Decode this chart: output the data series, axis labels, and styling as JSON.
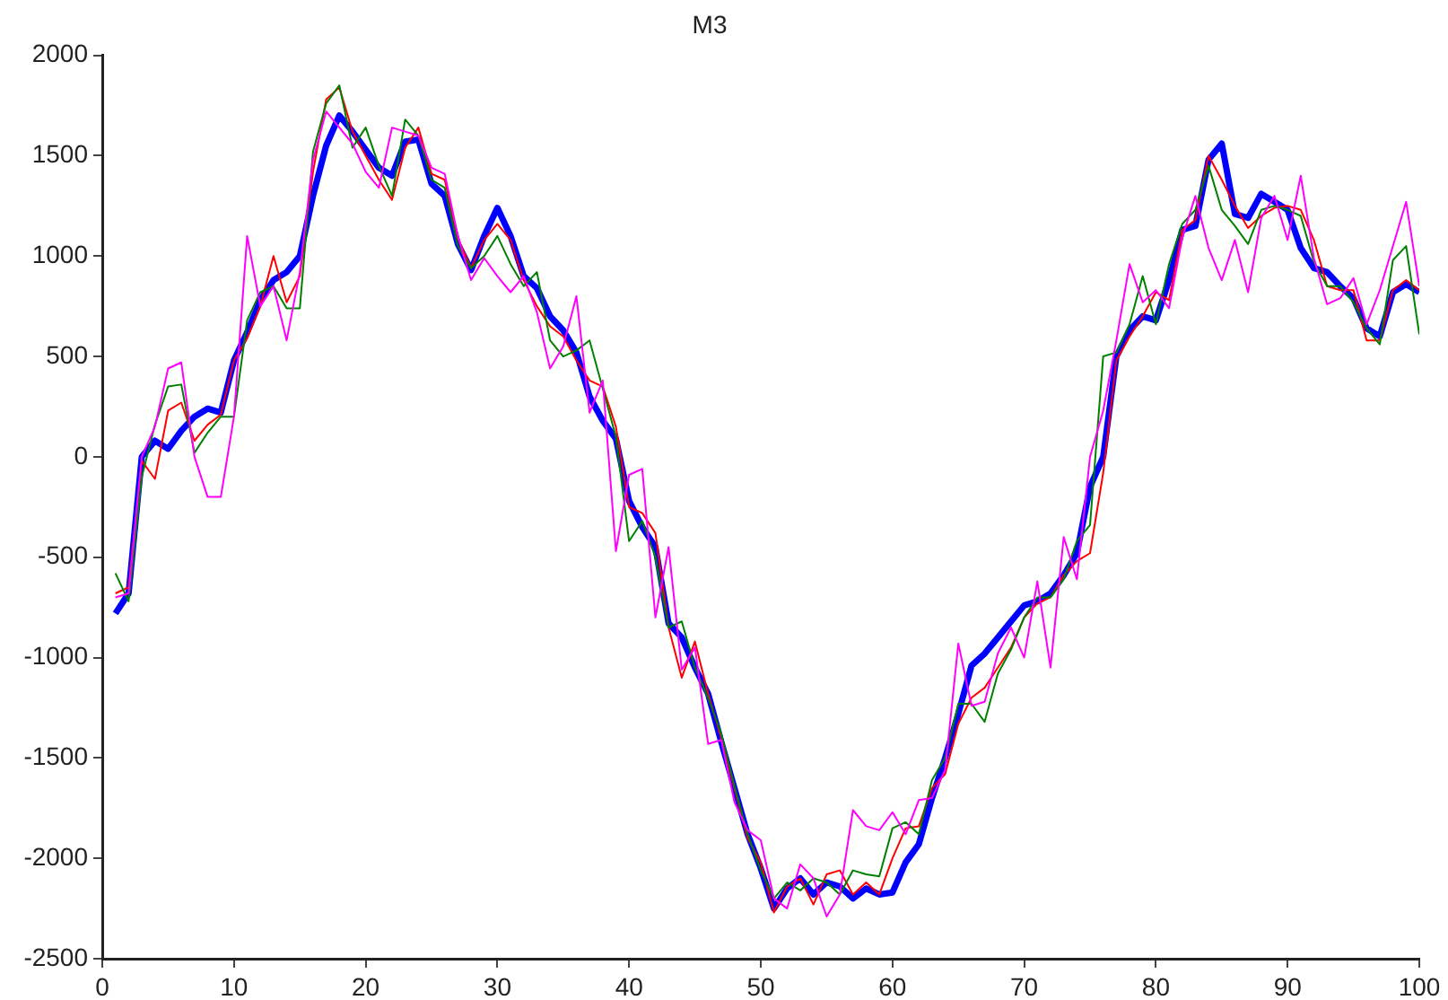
{
  "chart_data": {
    "type": "line",
    "title": "M3",
    "x": [
      1,
      2,
      3,
      4,
      5,
      6,
      7,
      8,
      9,
      10,
      11,
      12,
      13,
      14,
      15,
      16,
      17,
      18,
      19,
      20,
      21,
      22,
      23,
      24,
      25,
      26,
      27,
      28,
      29,
      30,
      31,
      32,
      33,
      34,
      35,
      36,
      37,
      38,
      39,
      40,
      41,
      42,
      43,
      44,
      45,
      46,
      47,
      48,
      49,
      50,
      51,
      52,
      53,
      54,
      55,
      56,
      57,
      58,
      59,
      60,
      61,
      62,
      63,
      64,
      65,
      66,
      67,
      68,
      69,
      70,
      71,
      72,
      73,
      74,
      75,
      76,
      77,
      78,
      79,
      80,
      81,
      82,
      83,
      84,
      85,
      86,
      87,
      88,
      89,
      90,
      91,
      92,
      93,
      94,
      95,
      96,
      97,
      98,
      99,
      100
    ],
    "xlim": [
      0,
      100
    ],
    "xticks": [
      0,
      10,
      20,
      30,
      40,
      50,
      60,
      70,
      80,
      90,
      100
    ],
    "ylim": [
      -2500,
      2000
    ],
    "yticks": [
      -2500,
      -2000,
      -1500,
      -1000,
      -500,
      0,
      500,
      1000,
      1500,
      2000
    ],
    "grid": false,
    "legend": false,
    "line_style": "solid",
    "series": [
      {
        "color": "#ff00ff",
        "values": [
          -700,
          -680,
          0,
          150,
          440,
          470,
          0,
          -200,
          -200,
          200,
          1100,
          750,
          850,
          580,
          920,
          1480,
          1720,
          1640,
          1560,
          1420,
          1340,
          1640,
          1620,
          1600,
          1440,
          1410,
          1100,
          880,
          990,
          900,
          820,
          900,
          720,
          440,
          550,
          800,
          220,
          380,
          -470,
          -90,
          -60,
          -800,
          -450,
          -1060,
          -950,
          -1430,
          -1410,
          -1720,
          -1860,
          -1910,
          -2200,
          -2250,
          -2030,
          -2100,
          -2290,
          -2180,
          -1760,
          -1840,
          -1860,
          -1770,
          -1880,
          -1710,
          -1700,
          -1560,
          -930,
          -1240,
          -1220,
          -980,
          -850,
          -1000,
          -620,
          -1050,
          -400,
          -610,
          0,
          230,
          580,
          960,
          770,
          830,
          740,
          1090,
          1300,
          1040,
          880,
          1080,
          820,
          1190,
          1300,
          1080,
          1400,
          990,
          760,
          790,
          890,
          660,
          830,
          1050,
          1270,
          850
        ]
      },
      {
        "color": "#008000",
        "values": [
          -580,
          -720,
          -100,
          160,
          350,
          360,
          20,
          120,
          200,
          200,
          680,
          820,
          850,
          740,
          740,
          1520,
          1760,
          1850,
          1540,
          1640,
          1450,
          1300,
          1680,
          1600,
          1380,
          1340,
          1050,
          940,
          1000,
          1100,
          960,
          850,
          920,
          580,
          500,
          530,
          580,
          340,
          100,
          -420,
          -320,
          -500,
          -850,
          -820,
          -1050,
          -1200,
          -1380,
          -1640,
          -1880,
          -2060,
          -2200,
          -2120,
          -2160,
          -2100,
          -2120,
          -2180,
          -2060,
          -2080,
          -2090,
          -1850,
          -1820,
          -1880,
          -1610,
          -1500,
          -1230,
          -1230,
          -1320,
          -1080,
          -960,
          -800,
          -700,
          -700,
          -610,
          -420,
          -340,
          500,
          520,
          660,
          900,
          660,
          960,
          1160,
          1230,
          1450,
          1230,
          1150,
          1060,
          1230,
          1250,
          1230,
          1200,
          970,
          850,
          850,
          770,
          640,
          560,
          980,
          1050,
          610
        ]
      },
      {
        "color": "#ff0000",
        "values": [
          -680,
          -650,
          -20,
          -110,
          230,
          270,
          80,
          160,
          210,
          480,
          590,
          750,
          1000,
          770,
          900,
          1420,
          1780,
          1840,
          1620,
          1500,
          1380,
          1280,
          1540,
          1640,
          1410,
          1380,
          1090,
          940,
          1080,
          1160,
          1080,
          880,
          750,
          650,
          600,
          480,
          380,
          350,
          150,
          -250,
          -280,
          -380,
          -850,
          -1100,
          -920,
          -1180,
          -1400,
          -1650,
          -1900,
          -2020,
          -2270,
          -2140,
          -2100,
          -2230,
          -2080,
          -2060,
          -2180,
          -2120,
          -2180,
          -2000,
          -1850,
          -1840,
          -1650,
          -1580,
          -1330,
          -1200,
          -1150,
          -1050,
          -950,
          -800,
          -730,
          -700,
          -590,
          -520,
          -480,
          -80,
          480,
          600,
          700,
          820,
          780,
          1130,
          1180,
          1500,
          1380,
          1250,
          1140,
          1200,
          1240,
          1250,
          1230,
          1080,
          850,
          830,
          830,
          580,
          580,
          830,
          880,
          830
        ]
      },
      {
        "color": "#0000ff",
        "values": [
          -780,
          -680,
          0,
          80,
          40,
          130,
          200,
          240,
          220,
          480,
          620,
          780,
          880,
          920,
          1000,
          1300,
          1550,
          1700,
          1620,
          1530,
          1440,
          1400,
          1570,
          1580,
          1360,
          1300,
          1060,
          930,
          1100,
          1240,
          1100,
          900,
          840,
          700,
          630,
          520,
          300,
          180,
          90,
          -220,
          -350,
          -450,
          -830,
          -900,
          -1050,
          -1180,
          -1420,
          -1650,
          -1880,
          -2050,
          -2250,
          -2150,
          -2100,
          -2180,
          -2120,
          -2140,
          -2200,
          -2150,
          -2180,
          -2170,
          -2020,
          -1930,
          -1700,
          -1500,
          -1280,
          -1040,
          -980,
          -900,
          -820,
          -740,
          -720,
          -680,
          -590,
          -480,
          -150,
          0,
          500,
          630,
          700,
          680,
          880,
          1130,
          1150,
          1480,
          1560,
          1210,
          1190,
          1310,
          1270,
          1230,
          1040,
          940,
          920,
          850,
          790,
          640,
          600,
          820,
          860,
          820
        ]
      }
    ]
  }
}
